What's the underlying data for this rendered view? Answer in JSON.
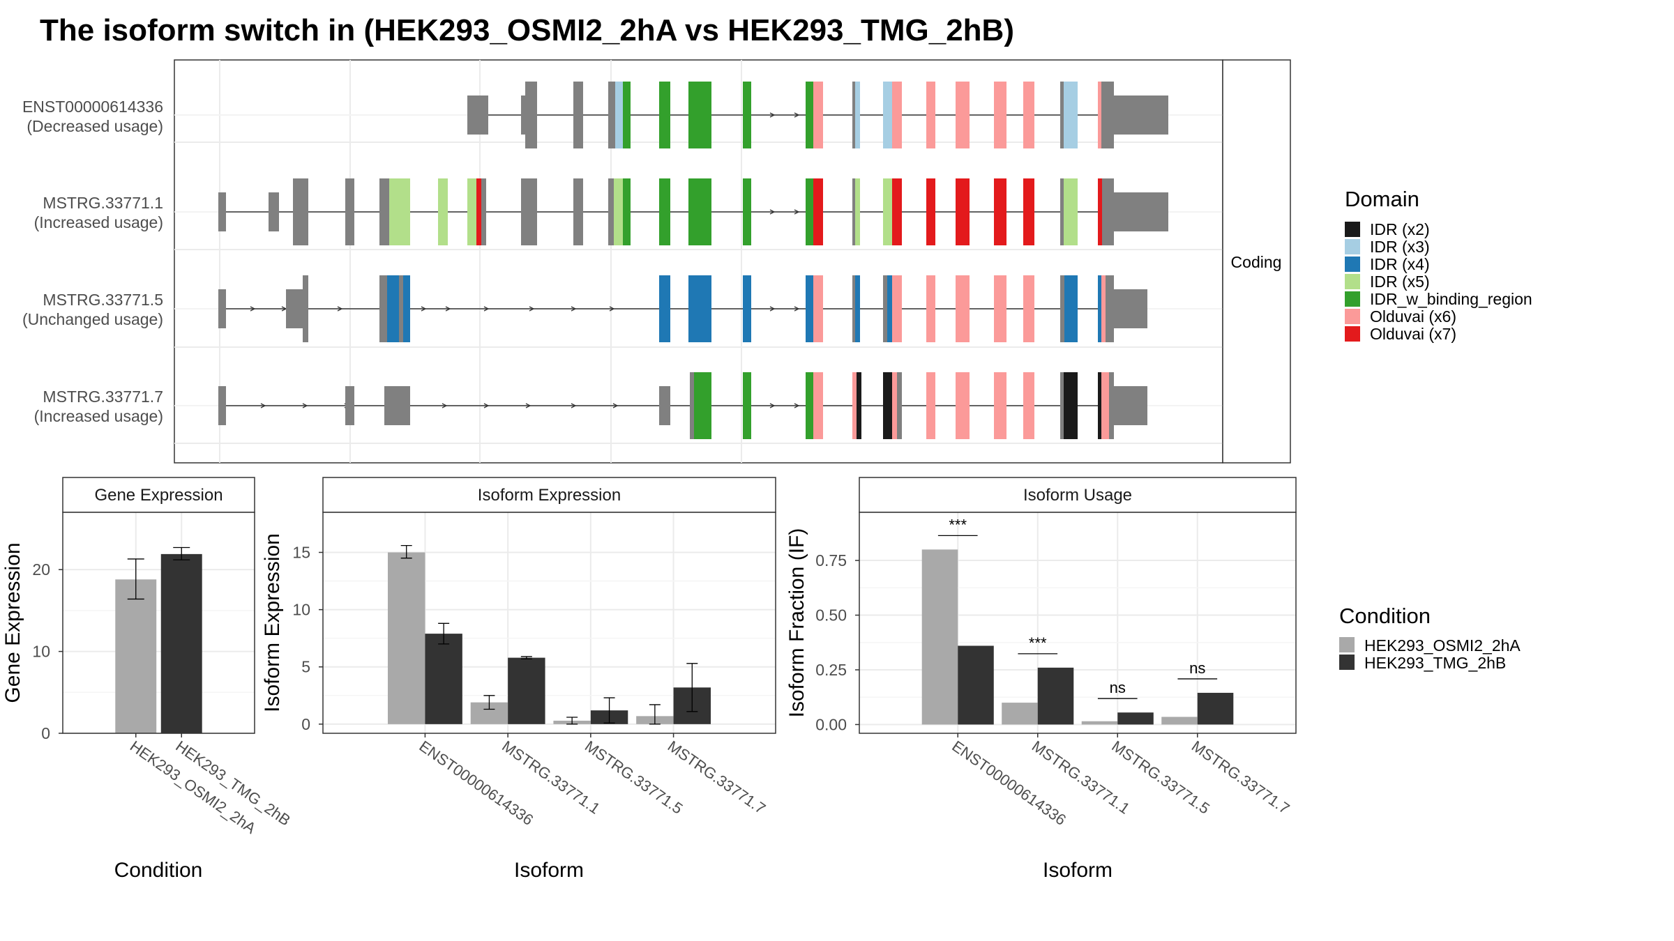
{
  "title": "The isoform switch in  (HEK293_OSMI2_2hA vs HEK293_TMG_2hB)",
  "colors": {
    "condA": "#a9a9a9",
    "condB": "#333333",
    "exon": "#808080",
    "domains": {
      "IDR (x2)": "#1a1a1a",
      "IDR (x3)": "#a6cee3",
      "IDR (x4)": "#1f78b4",
      "IDR (x5)": "#b2df8a",
      "IDR_w_binding_region": "#33a02c",
      "Olduvai (x6)": "#fb9a99",
      "Olduvai (x7)": "#e31a1c"
    }
  },
  "structure": {
    "facet_label": "Coding",
    "isoforms": [
      {
        "id": "ENST00000614336",
        "note": "(Decreased usage)"
      },
      {
        "id": "MSTRG.33771.1",
        "note": "(Increased usage)"
      },
      {
        "id": "MSTRG.33771.5",
        "note": "(Unchanged usage)"
      },
      {
        "id": "MSTRG.33771.7",
        "note": "(Increased usage)"
      }
    ]
  },
  "legend_domain": {
    "title": "Domain",
    "items": [
      "IDR (x2)",
      "IDR (x3)",
      "IDR (x4)",
      "IDR (x5)",
      "IDR_w_binding_region",
      "Olduvai (x6)",
      "Olduvai (x7)"
    ]
  },
  "legend_condition": {
    "title": "Condition",
    "items": [
      "HEK293_OSMI2_2hA",
      "HEK293_TMG_2hB"
    ]
  },
  "chart_data": [
    {
      "type": "bar",
      "title": "Gene Expression",
      "xlabel": "Condition",
      "ylabel": "Gene Expression",
      "categories": [
        "HEK293_OSMI2_2hA",
        "HEK293_TMG_2hB"
      ],
      "values": [
        18.8,
        21.9
      ],
      "error": [
        [
          16.4,
          21.3
        ],
        [
          21.2,
          22.7
        ]
      ],
      "ylim": [
        0,
        27
      ],
      "yticks": [
        0,
        10,
        20
      ]
    },
    {
      "type": "bar",
      "title": "Isoform Expression",
      "xlabel": "Isoform",
      "ylabel": "Isoform Expression",
      "categories": [
        "ENST00000614336",
        "MSTRG.33771.1",
        "MSTRG.33771.5",
        "MSTRG.33771.7"
      ],
      "series": [
        {
          "name": "HEK293_OSMI2_2hA",
          "values": [
            15.0,
            1.9,
            0.3,
            0.7
          ],
          "error": [
            [
              14.5,
              15.6
            ],
            [
              1.3,
              2.5
            ],
            [
              0.0,
              0.6
            ],
            [
              0.0,
              1.7
            ]
          ]
        },
        {
          "name": "HEK293_TMG_2hB",
          "values": [
            7.9,
            5.8,
            1.2,
            3.2
          ],
          "error": [
            [
              7.0,
              8.8
            ],
            [
              5.7,
              5.9
            ],
            [
              0.1,
              2.3
            ],
            [
              1.1,
              5.3
            ]
          ]
        }
      ],
      "ylim": [
        -0.8,
        18.5
      ],
      "yticks": [
        0,
        5,
        10,
        15
      ]
    },
    {
      "type": "bar",
      "title": "Isoform Usage",
      "xlabel": "Isoform",
      "ylabel": "Isoform Fraction (IF)",
      "categories": [
        "ENST00000614336",
        "MSTRG.33771.1",
        "MSTRG.33771.5",
        "MSTRG.33771.7"
      ],
      "series": [
        {
          "name": "HEK293_OSMI2_2hA",
          "values": [
            0.8,
            0.1,
            0.015,
            0.035
          ]
        },
        {
          "name": "HEK293_TMG_2hB",
          "values": [
            0.36,
            0.26,
            0.055,
            0.145
          ]
        }
      ],
      "significance": [
        "***",
        "***",
        "ns",
        "ns"
      ],
      "ylim": [
        -0.04,
        0.97
      ],
      "yticks": [
        "0.00",
        "0.25",
        "0.50",
        "0.75"
      ]
    }
  ]
}
